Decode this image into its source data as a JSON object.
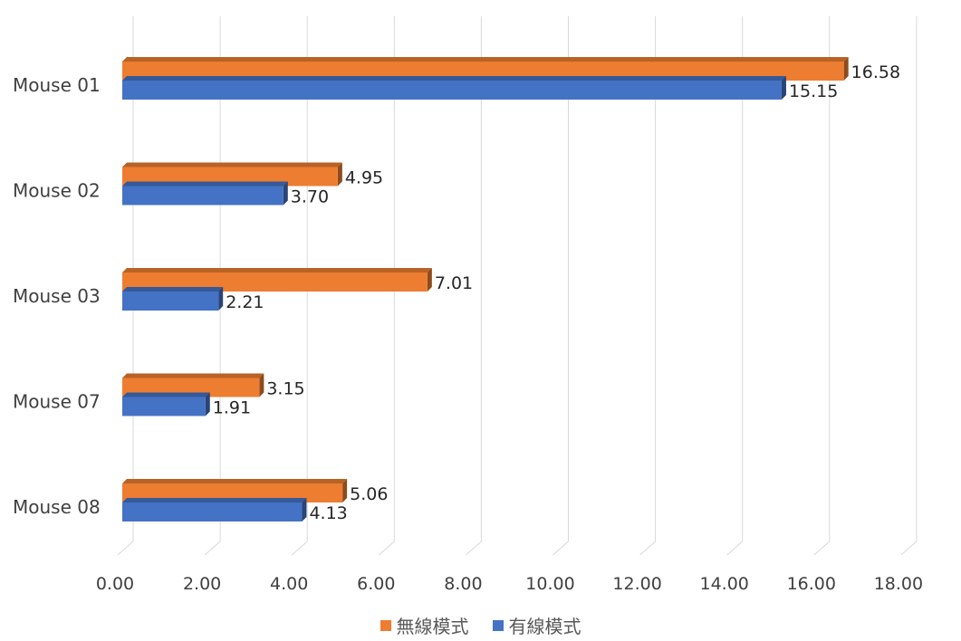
{
  "chart_data": {
    "type": "bar",
    "orientation": "horizontal",
    "style": "3d-clustered",
    "categories": [
      "Mouse 01",
      "Mouse 02",
      "Mouse 03",
      "Mouse 07",
      "Mouse 08"
    ],
    "series": [
      {
        "name": "無線模式",
        "color": "#ED7D31",
        "values": [
          16.58,
          4.95,
          7.01,
          3.15,
          5.06
        ],
        "labels": [
          "16.58",
          "4.95",
          "7.01",
          "3.15",
          "5.06"
        ]
      },
      {
        "name": "有線模式",
        "color": "#4472C4",
        "values": [
          15.15,
          3.7,
          2.21,
          1.91,
          4.13
        ],
        "labels": [
          "15.15",
          "3.70",
          "2.21",
          "1.91",
          "4.13"
        ]
      }
    ],
    "xlim": [
      0,
      18
    ],
    "xticks": [
      "0.00",
      "2.00",
      "4.00",
      "6.00",
      "8.00",
      "10.00",
      "12.00",
      "14.00",
      "16.00",
      "18.00"
    ],
    "grid": true,
    "legend": "bottom-center",
    "title": "",
    "xlabel": "",
    "ylabel": ""
  }
}
